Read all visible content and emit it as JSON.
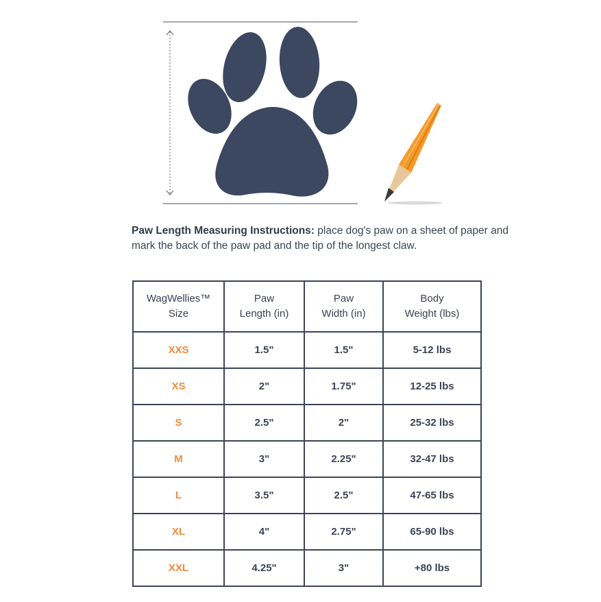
{
  "colors": {
    "paw": "#3c4760",
    "accent": "#f08a3c",
    "text": "#3d4357",
    "border": "#3d4357",
    "pencil_body": "#f59a2a",
    "pencil_wood": "#e8c79a"
  },
  "illustration": {
    "paw_icon": "paw-print-icon",
    "pencil_icon": "pencil-icon",
    "arrow_icon": "vertical-double-arrow-icon"
  },
  "instructions": {
    "heading": "Paw Length Measuring Instructions:",
    "body": " place dog's paw on a sheet of paper and mark the back of the paw pad and the tip of the longest claw."
  },
  "table": {
    "headers": [
      {
        "line1": "WagWellies™",
        "line2": "Size"
      },
      {
        "line1": "Paw",
        "line2": "Length (in)"
      },
      {
        "line1": "Paw",
        "line2": "Width (in)"
      },
      {
        "line1": "Body",
        "line2": "Weight (lbs)"
      }
    ],
    "rows": [
      {
        "size": "XXS",
        "length": "1.5\"",
        "width": "1.5\"",
        "weight": "5-12 lbs"
      },
      {
        "size": "XS",
        "length": "2\"",
        "width": "1.75\"",
        "weight": "12-25 lbs"
      },
      {
        "size": "S",
        "length": "2.5\"",
        "width": "2\"",
        "weight": "25-32 lbs"
      },
      {
        "size": "M",
        "length": "3\"",
        "width": "2.25\"",
        "weight": "32-47 lbs"
      },
      {
        "size": "L",
        "length": "3.5\"",
        "width": "2.5\"",
        "weight": "47-65 lbs"
      },
      {
        "size": "XL",
        "length": "4\"",
        "width": "2.75\"",
        "weight": "65-90 lbs"
      },
      {
        "size": "XXL",
        "length": "4.25\"",
        "width": "3\"",
        "weight": "+80 lbs"
      }
    ]
  }
}
